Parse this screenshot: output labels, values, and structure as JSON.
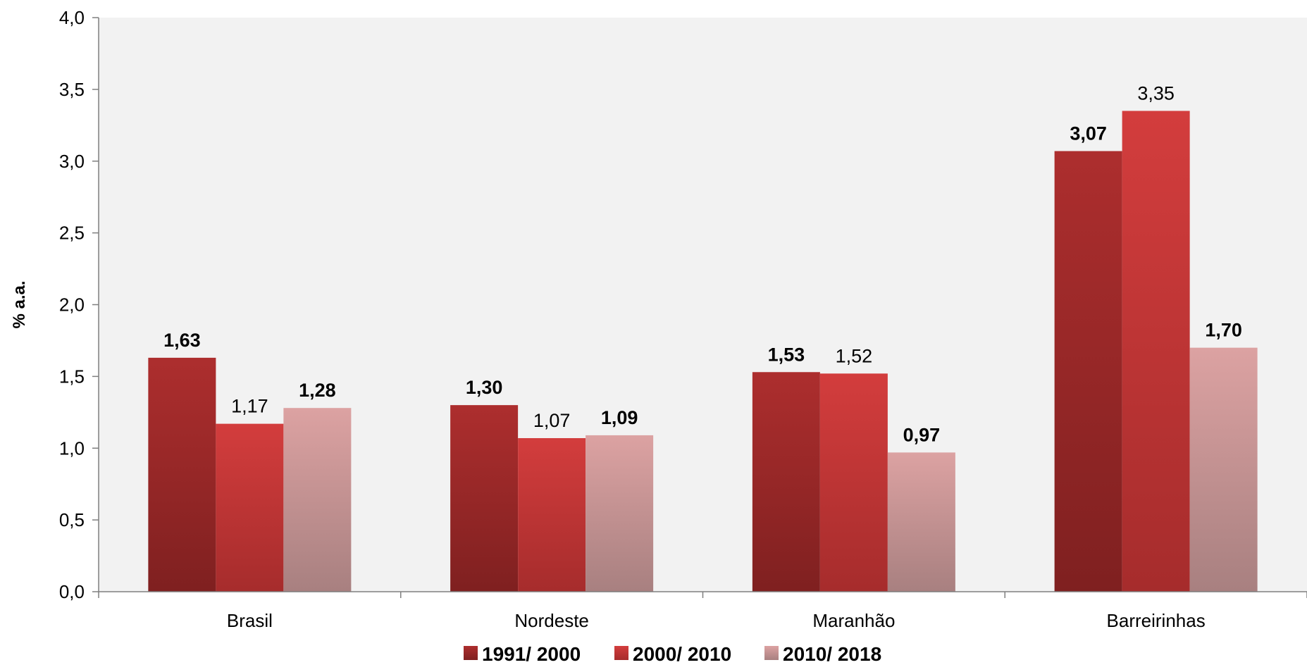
{
  "chart_data": {
    "type": "bar",
    "categories": [
      "Brasil",
      "Nordeste",
      "Maranhão",
      "Barreirinhas"
    ],
    "series": [
      {
        "name": "1991/ 2000",
        "values": [
          1.63,
          1.3,
          1.53,
          3.07
        ],
        "labels": [
          "1,63",
          "1,30",
          "1,53",
          "3,07"
        ],
        "label_bold": [
          true,
          true,
          true,
          true
        ],
        "color_top": "#ad2e2e",
        "color_bottom": "#7f2020"
      },
      {
        "name": "2000/ 2010",
        "values": [
          1.17,
          1.07,
          1.52,
          3.35
        ],
        "labels": [
          "1,17",
          "1,07",
          "1,52",
          "3,35"
        ],
        "label_bold": [
          false,
          false,
          false,
          false
        ],
        "color_top": "#d33d3d",
        "color_bottom": "#a62c2c"
      },
      {
        "name": "2010/ 2018",
        "values": [
          1.28,
          1.09,
          0.97,
          1.7
        ],
        "labels": [
          "1,28",
          "1,09",
          "0,97",
          "1,70"
        ],
        "label_bold": [
          true,
          true,
          true,
          true
        ],
        "color_top": "#dca2a2",
        "color_bottom": "#a88080"
      }
    ],
    "xlabel": "",
    "ylabel": "% a.a.",
    "ylim": [
      0,
      4
    ],
    "yticks": [
      0,
      0.5,
      1.0,
      1.5,
      2.0,
      2.5,
      3.0,
      3.5,
      4.0
    ],
    "ytick_labels": [
      "0,0",
      "0,5",
      "1,0",
      "1,5",
      "2,0",
      "2,5",
      "3,0",
      "3,5",
      "4,0"
    ],
    "grid": false,
    "legend_position": "bottom",
    "plot_background": "#f2f2f2",
    "axis_color": "#7f7f7f"
  }
}
